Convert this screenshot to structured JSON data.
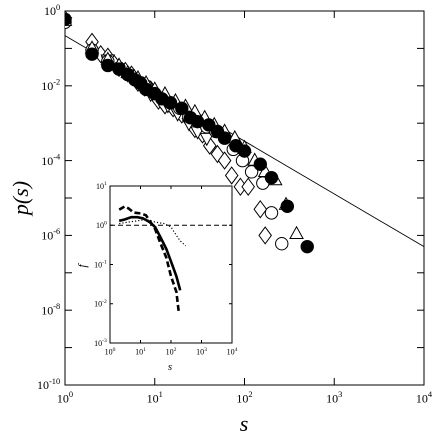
{
  "chart_data": [
    {
      "type": "scatter",
      "xscale": "log",
      "yscale": "log",
      "xlim": [
        1,
        10000
      ],
      "ylim": [
        1e-10,
        1
      ],
      "xlabel": "s",
      "ylabel": "p(s)",
      "x_ticks": [
        {
          "value": 1,
          "base": "10",
          "exp": "0"
        },
        {
          "value": 10,
          "base": "10",
          "exp": "1"
        },
        {
          "value": 100,
          "base": "10",
          "exp": "2"
        },
        {
          "value": 1000,
          "base": "10",
          "exp": "3"
        },
        {
          "value": 10000,
          "base": "10",
          "exp": "4"
        }
      ],
      "y_ticks": [
        {
          "value": 1,
          "base": "10",
          "exp": "0"
        },
        {
          "value": 0.01,
          "base": "10",
          "exp": "-2"
        },
        {
          "value": 0.0001,
          "base": "10",
          "exp": "-4"
        },
        {
          "value": 1e-06,
          "base": "10",
          "exp": "-6"
        },
        {
          "value": 1e-08,
          "base": "10",
          "exp": "-8"
        },
        {
          "value": 1e-10,
          "base": "10",
          "exp": "-10"
        }
      ],
      "grid": false,
      "legend": "none",
      "reference_line": {
        "x": [
          1,
          10000
        ],
        "y": [
          0.22,
          5e-07
        ]
      },
      "series": [
        {
          "marker": "diamond",
          "fill": "none",
          "x": [
            1,
            2,
            2.5,
            3,
            3.5,
            4,
            4.7,
            5.5,
            6.5,
            7.7,
            9,
            11,
            13,
            16,
            20,
            24,
            28,
            34,
            41,
            50,
            60,
            72,
            90,
            110,
            150,
            170
          ],
          "y": [
            0.6,
            0.15,
            0.07,
            0.06,
            0.04,
            0.03,
            0.025,
            0.02,
            0.012,
            0.009,
            0.008,
            0.004,
            0.003,
            0.0025,
            0.0017,
            0.0012,
            0.0007,
            0.0005,
            0.00025,
            0.00015,
            0.0001,
            4e-05,
            2e-05,
            2e-05,
            5e-06,
            1e-06
          ]
        },
        {
          "marker": "triangle-down",
          "fill": "none",
          "x": [
            1,
            3,
            5,
            7,
            9,
            11,
            14,
            18,
            24,
            30,
            38
          ],
          "y": [
            0.5,
            0.05,
            0.02,
            0.01,
            0.006,
            0.005,
            0.003,
            0.0018,
            0.001,
            0.0006,
            0.0004
          ]
        },
        {
          "marker": "circle",
          "fill": "none",
          "x": [
            1,
            2,
            3,
            4,
            5,
            6,
            7,
            8,
            10,
            12,
            15,
            19,
            24,
            30,
            38,
            48,
            60,
            75,
            95,
            120,
            160,
            200,
            260
          ],
          "y": [
            0.5,
            0.09,
            0.045,
            0.03,
            0.02,
            0.015,
            0.012,
            0.0098,
            0.0062,
            0.0047,
            0.0035,
            0.0025,
            0.0015,
            0.0012,
            0.0008,
            0.0006,
            0.0004,
            0.0002,
            0.0001,
            5e-05,
            2.5e-05,
            4e-06,
            6e-07
          ]
        },
        {
          "marker": "triangle-up",
          "fill": "none",
          "x": [
            1,
            2,
            3,
            4,
            5,
            6.5,
            8,
            10,
            13,
            17,
            22,
            28,
            36,
            46,
            60,
            78,
            100,
            130,
            170,
            220,
            290,
            380
          ],
          "y": [
            0.55,
            0.1,
            0.05,
            0.035,
            0.022,
            0.016,
            0.0118,
            0.008,
            0.006,
            0.0039,
            0.0028,
            0.002,
            0.0014,
            0.0009,
            0.0006,
            0.0004,
            0.00022,
            0.0001,
            5e-05,
            3e-05,
            6.6e-06,
            1.1e-06
          ]
        },
        {
          "marker": "circle",
          "fill": "filled",
          "x": [
            1,
            2,
            3,
            4,
            5,
            6,
            7,
            8,
            10,
            12,
            15,
            20,
            25,
            30,
            40,
            50,
            60,
            80,
            100,
            150,
            200,
            300,
            500
          ],
          "y": [
            0.6,
            0.07,
            0.035,
            0.028,
            0.02,
            0.0145,
            0.0115,
            0.008,
            0.0062,
            0.0045,
            0.0035,
            0.0025,
            0.0014,
            0.0011,
            0.0009,
            0.0006,
            0.0004,
            0.00025,
            0.00018,
            8e-05,
            3.5e-05,
            6e-06,
            5e-07
          ]
        }
      ]
    },
    {
      "type": "line",
      "xscale": "log",
      "yscale": "log",
      "xlim": [
        1,
        10000
      ],
      "ylim": [
        0.001,
        10
      ],
      "xlabel": "s",
      "ylabel": "f",
      "x_ticks": [
        {
          "value": 1,
          "base": "10",
          "exp": "0"
        },
        {
          "value": 10,
          "base": "10",
          "exp": "1"
        },
        {
          "value": 100,
          "base": "10",
          "exp": "2"
        },
        {
          "value": 1000,
          "base": "10",
          "exp": "3"
        },
        {
          "value": 10000,
          "base": "10",
          "exp": "4"
        }
      ],
      "y_ticks": [
        {
          "value": 0.001,
          "base": "10",
          "exp": "-3"
        },
        {
          "value": 0.01,
          "base": "10",
          "exp": "-2"
        },
        {
          "value": 0.1,
          "base": "10",
          "exp": "-1"
        },
        {
          "value": 1,
          "base": "10",
          "exp": "0"
        },
        {
          "value": 10,
          "base": "10",
          "exp": "1"
        }
      ],
      "grid": false,
      "legend": "none",
      "reference_line": {
        "y": 1,
        "style": "dashed"
      },
      "series": [
        {
          "style": "solid",
          "width": "thick",
          "x": [
            2,
            3,
            5,
            8,
            12,
            20,
            30,
            45,
            70,
            100,
            150,
            200
          ],
          "y": [
            1.3,
            1.4,
            1.6,
            1.6,
            1.5,
            1.2,
            0.9,
            0.5,
            0.25,
            0.12,
            0.05,
            0.022
          ]
        },
        {
          "style": "dashed",
          "width": "thick",
          "x": [
            2,
            3,
            4,
            6,
            10,
            15,
            20,
            30,
            45,
            70,
            100,
            150,
            180
          ],
          "y": [
            2.5,
            3.0,
            2.7,
            2.1,
            2.0,
            1.8,
            1.3,
            0.8,
            0.35,
            0.15,
            0.05,
            0.02,
            0.006
          ]
        },
        {
          "style": "dotted",
          "width": "thin",
          "x": [
            2,
            4,
            8,
            15,
            30,
            60,
            100,
            150,
            200,
            300
          ],
          "y": [
            1.1,
            1.2,
            1.3,
            1.4,
            1.2,
            1.1,
            0.9,
            0.55,
            0.4,
            0.3
          ]
        }
      ]
    }
  ]
}
